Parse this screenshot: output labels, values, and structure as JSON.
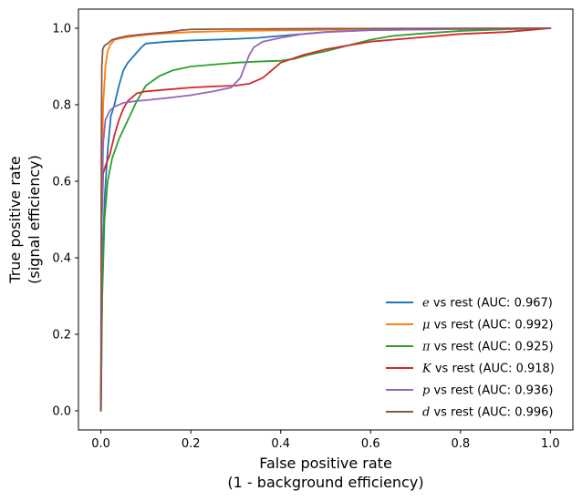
{
  "chart_data": {
    "type": "line",
    "xlabel": [
      "False positive rate",
      "(1 - background efficiency)"
    ],
    "ylabel": [
      "True positive rate",
      "(signal efficiency)"
    ],
    "xlim": [
      -0.05,
      1.05
    ],
    "ylim": [
      -0.05,
      1.05
    ],
    "xticks": [
      0.0,
      0.2,
      0.4,
      0.6,
      0.8,
      1.0
    ],
    "yticks": [
      0.0,
      0.2,
      0.4,
      0.6,
      0.8,
      1.0
    ],
    "xtick_labels": [
      "0.0",
      "0.2",
      "0.4",
      "0.6",
      "0.8",
      "1.0"
    ],
    "ytick_labels": [
      "0.0",
      "0.2",
      "0.4",
      "0.6",
      "0.8",
      "1.0"
    ],
    "grid": false,
    "legend_position": "lower-right",
    "series": [
      {
        "name": "e vs rest (AUC: 0.967)",
        "symbol": "e",
        "label_rest": " vs rest (AUC: 0.967)",
        "color": "#1f77b4",
        "x": [
          0.0,
          0.003,
          0.008,
          0.015,
          0.022,
          0.03,
          0.04,
          0.05,
          0.06,
          0.075,
          0.09,
          0.1,
          0.15,
          0.2,
          0.3,
          0.35,
          0.4,
          0.45,
          0.5,
          0.6,
          0.8,
          1.0
        ],
        "y": [
          0.0,
          0.35,
          0.55,
          0.68,
          0.77,
          0.8,
          0.85,
          0.89,
          0.91,
          0.93,
          0.95,
          0.96,
          0.965,
          0.968,
          0.972,
          0.975,
          0.98,
          0.985,
          0.99,
          0.995,
          0.998,
          1.0
        ]
      },
      {
        "name": "μ vs rest (AUC: 0.992)",
        "symbol": "μ",
        "label_rest": " vs rest (AUC: 0.992)",
        "color": "#ff7f0e",
        "x": [
          0.0,
          0.002,
          0.005,
          0.01,
          0.015,
          0.02,
          0.03,
          0.05,
          0.08,
          0.12,
          0.2,
          0.3,
          0.5,
          0.7,
          1.0
        ],
        "y": [
          0.0,
          0.6,
          0.8,
          0.9,
          0.94,
          0.955,
          0.97,
          0.975,
          0.98,
          0.985,
          0.99,
          0.993,
          0.996,
          0.998,
          1.0
        ]
      },
      {
        "name": "π vs rest (AUC: 0.925)",
        "symbol": "π",
        "label_rest": " vs rest (AUC: 0.925)",
        "color": "#2ca02c",
        "x": [
          0.0,
          0.003,
          0.008,
          0.015,
          0.025,
          0.04,
          0.06,
          0.08,
          0.1,
          0.13,
          0.16,
          0.2,
          0.25,
          0.3,
          0.35,
          0.4,
          0.43,
          0.46,
          0.5,
          0.55,
          0.6,
          0.65,
          0.7,
          0.8,
          0.9,
          1.0
        ],
        "y": [
          0.0,
          0.3,
          0.5,
          0.6,
          0.66,
          0.71,
          0.76,
          0.81,
          0.85,
          0.875,
          0.89,
          0.9,
          0.905,
          0.91,
          0.913,
          0.915,
          0.92,
          0.93,
          0.94,
          0.955,
          0.97,
          0.98,
          0.985,
          0.993,
          0.997,
          1.0
        ]
      },
      {
        "name": "K vs rest (AUC: 0.918)",
        "symbol": "K",
        "label_rest": " vs rest (AUC: 0.918)",
        "color": "#d62728",
        "x": [
          0.0,
          0.002,
          0.005,
          0.01,
          0.02,
          0.03,
          0.04,
          0.05,
          0.06,
          0.08,
          0.1,
          0.15,
          0.2,
          0.25,
          0.3,
          0.33,
          0.36,
          0.38,
          0.4,
          0.45,
          0.5,
          0.55,
          0.6,
          0.7,
          0.8,
          0.9,
          1.0
        ],
        "y": [
          0.0,
          0.5,
          0.62,
          0.64,
          0.67,
          0.72,
          0.76,
          0.79,
          0.81,
          0.83,
          0.835,
          0.84,
          0.845,
          0.848,
          0.85,
          0.855,
          0.87,
          0.89,
          0.91,
          0.93,
          0.945,
          0.955,
          0.965,
          0.975,
          0.985,
          0.99,
          1.0
        ]
      },
      {
        "name": "p vs rest (AUC: 0.936)",
        "symbol": "p",
        "label_rest": " vs rest (AUC: 0.936)",
        "color": "#9467bd",
        "x": [
          0.0,
          0.002,
          0.005,
          0.01,
          0.02,
          0.03,
          0.05,
          0.08,
          0.1,
          0.15,
          0.2,
          0.25,
          0.29,
          0.31,
          0.32,
          0.33,
          0.34,
          0.36,
          0.4,
          0.45,
          0.5,
          0.6,
          0.8,
          1.0
        ],
        "y": [
          0.0,
          0.5,
          0.7,
          0.76,
          0.785,
          0.795,
          0.805,
          0.81,
          0.812,
          0.818,
          0.825,
          0.835,
          0.845,
          0.87,
          0.9,
          0.93,
          0.95,
          0.965,
          0.975,
          0.985,
          0.99,
          0.995,
          0.998,
          1.0
        ]
      },
      {
        "name": "d vs rest (AUC: 0.996)",
        "symbol": "d",
        "label_rest": " vs rest (AUC: 0.996)",
        "color": "#8c564b",
        "x": [
          0.0,
          0.001,
          0.002,
          0.004,
          0.008,
          0.015,
          0.025,
          0.04,
          0.06,
          0.1,
          0.15,
          0.18,
          0.2,
          0.3,
          0.5,
          1.0
        ],
        "y": [
          0.0,
          0.7,
          0.9,
          0.945,
          0.955,
          0.96,
          0.97,
          0.975,
          0.98,
          0.985,
          0.99,
          0.995,
          0.997,
          0.998,
          0.999,
          1.0
        ]
      }
    ]
  }
}
